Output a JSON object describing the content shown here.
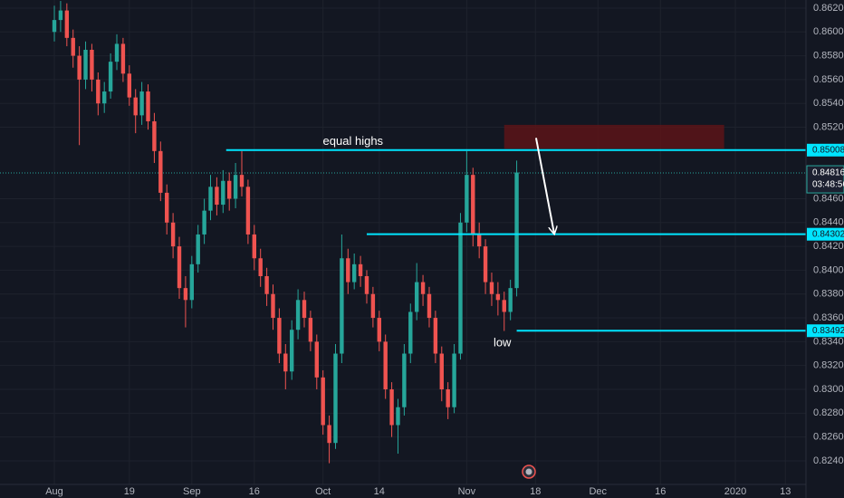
{
  "chart_data": {
    "type": "candlestick",
    "x": [
      0,
      1,
      2,
      3,
      4,
      5,
      6,
      7,
      8,
      9,
      10,
      11,
      12,
      13,
      14,
      15,
      16,
      17,
      18,
      19,
      20,
      21,
      22,
      23,
      24,
      25,
      26,
      27,
      28,
      29,
      30,
      31,
      32,
      33,
      34,
      35,
      36,
      37,
      38,
      39,
      40,
      41,
      42,
      43,
      44,
      45,
      46,
      47,
      48,
      49,
      50,
      51,
      52,
      53,
      54,
      55,
      56,
      57,
      58,
      59,
      60,
      61,
      62,
      63,
      64,
      65,
      66,
      67,
      68,
      69,
      70,
      71,
      72,
      73,
      74
    ],
    "open": [
      0.86,
      0.861,
      0.8618,
      0.8595,
      0.858,
      0.856,
      0.8585,
      0.856,
      0.854,
      0.855,
      0.8575,
      0.859,
      0.8565,
      0.8545,
      0.853,
      0.855,
      0.8525,
      0.85,
      0.8465,
      0.844,
      0.842,
      0.8385,
      0.8375,
      0.8405,
      0.843,
      0.845,
      0.847,
      0.8455,
      0.8475,
      0.846,
      0.848,
      0.847,
      0.843,
      0.841,
      0.8395,
      0.838,
      0.836,
      0.833,
      0.8315,
      0.835,
      0.8375,
      0.836,
      0.834,
      0.831,
      0.827,
      0.8255,
      0.833,
      0.841,
      0.839,
      0.8405,
      0.8395,
      0.838,
      0.836,
      0.834,
      0.83,
      0.827,
      0.8285,
      0.833,
      0.8365,
      0.839,
      0.838,
      0.836,
      0.833,
      0.83,
      0.8285,
      0.833,
      0.844,
      0.848,
      0.843,
      0.842,
      0.839,
      0.838,
      0.8375,
      0.8365,
      0.8385
    ],
    "high": [
      0.8622,
      0.8626,
      0.8624,
      0.8602,
      0.8588,
      0.8592,
      0.859,
      0.8566,
      0.8558,
      0.8582,
      0.8598,
      0.8595,
      0.8572,
      0.8552,
      0.8558,
      0.8556,
      0.8532,
      0.8508,
      0.8472,
      0.8448,
      0.8428,
      0.8395,
      0.8412,
      0.8438,
      0.846,
      0.848,
      0.8478,
      0.8484,
      0.8482,
      0.849,
      0.85,
      0.8476,
      0.8438,
      0.8418,
      0.8402,
      0.8388,
      0.8368,
      0.8338,
      0.8358,
      0.8384,
      0.8382,
      0.8366,
      0.8346,
      0.8316,
      0.8278,
      0.8338,
      0.843,
      0.8418,
      0.8414,
      0.8412,
      0.84,
      0.8386,
      0.8366,
      0.8346,
      0.8306,
      0.8292,
      0.8338,
      0.8372,
      0.8406,
      0.8396,
      0.8386,
      0.8366,
      0.8336,
      0.8306,
      0.8338,
      0.8448,
      0.85,
      0.8486,
      0.844,
      0.8426,
      0.8398,
      0.839,
      0.8382,
      0.8392,
      0.8492
    ],
    "low": [
      0.8592,
      0.86,
      0.8588,
      0.857,
      0.8505,
      0.8552,
      0.855,
      0.853,
      0.8532,
      0.8544,
      0.8568,
      0.8558,
      0.8538,
      0.8515,
      0.8522,
      0.8518,
      0.849,
      0.8458,
      0.843,
      0.841,
      0.8376,
      0.8352,
      0.8368,
      0.8398,
      0.8422,
      0.8442,
      0.8446,
      0.8448,
      0.845,
      0.8452,
      0.8462,
      0.8422,
      0.84,
      0.8386,
      0.837,
      0.835,
      0.8322,
      0.83,
      0.8308,
      0.8342,
      0.8352,
      0.8332,
      0.83,
      0.8262,
      0.8238,
      0.825,
      0.8322,
      0.838,
      0.8384,
      0.8386,
      0.8372,
      0.8352,
      0.8332,
      0.8292,
      0.826,
      0.8246,
      0.8278,
      0.8322,
      0.8358,
      0.837,
      0.8352,
      0.8322,
      0.829,
      0.8275,
      0.828,
      0.8325,
      0.8432,
      0.842,
      0.841,
      0.838,
      0.837,
      0.8362,
      0.8349,
      0.8358,
      0.8378
    ],
    "close": [
      0.861,
      0.8618,
      0.8595,
      0.858,
      0.856,
      0.8585,
      0.856,
      0.854,
      0.855,
      0.8575,
      0.859,
      0.8565,
      0.8545,
      0.853,
      0.855,
      0.8525,
      0.85,
      0.8465,
      0.844,
      0.842,
      0.8385,
      0.8375,
      0.8405,
      0.843,
      0.845,
      0.847,
      0.8455,
      0.8475,
      0.846,
      0.848,
      0.847,
      0.843,
      0.841,
      0.8395,
      0.838,
      0.836,
      0.833,
      0.8315,
      0.835,
      0.8375,
      0.836,
      0.834,
      0.831,
      0.827,
      0.8255,
      0.833,
      0.841,
      0.839,
      0.8405,
      0.8395,
      0.838,
      0.836,
      0.834,
      0.83,
      0.827,
      0.8285,
      0.833,
      0.8365,
      0.839,
      0.838,
      0.836,
      0.833,
      0.83,
      0.8285,
      0.833,
      0.844,
      0.848,
      0.843,
      0.842,
      0.839,
      0.838,
      0.8375,
      0.8365,
      0.8385,
      0.8482
    ],
    "up_color": "#26a69a",
    "down_color": "#ef5350",
    "xlim": [
      -8.7,
      120.3
    ],
    "ylim": [
      0.82202,
      0.86268
    ],
    "xticks": [
      {
        "value": 0,
        "label": "Aug"
      },
      {
        "value": 12,
        "label": "19"
      },
      {
        "value": 22,
        "label": "Sep"
      },
      {
        "value": 32,
        "label": "16"
      },
      {
        "value": 43,
        "label": "Oct"
      },
      {
        "value": 52,
        "label": "14"
      },
      {
        "value": 66,
        "label": "Nov"
      },
      {
        "value": 77,
        "label": "18"
      },
      {
        "value": 87,
        "label": "Dec"
      },
      {
        "value": 97,
        "label": "16"
      },
      {
        "value": 109,
        "label": "2020"
      },
      {
        "value": 117,
        "label": "13"
      }
    ],
    "yticks": [
      {
        "value": 0.862,
        "label": "0.86200"
      },
      {
        "value": 0.86,
        "label": "0.86000"
      },
      {
        "value": 0.858,
        "label": "0.85800"
      },
      {
        "value": 0.856,
        "label": "0.85600"
      },
      {
        "value": 0.854,
        "label": "0.85400"
      },
      {
        "value": 0.852,
        "label": "0.85200"
      },
      {
        "value": 0.846,
        "label": "0.84600"
      },
      {
        "value": 0.844,
        "label": "0.84400"
      },
      {
        "value": 0.842,
        "label": "0.84200"
      },
      {
        "value": 0.84,
        "label": "0.84000"
      },
      {
        "value": 0.838,
        "label": "0.83800"
      },
      {
        "value": 0.836,
        "label": "0.83600"
      },
      {
        "value": 0.834,
        "label": "0.83400"
      },
      {
        "value": 0.832,
        "label": "0.83200"
      },
      {
        "value": 0.83,
        "label": "0.83000"
      },
      {
        "value": 0.828,
        "label": "0.82800"
      },
      {
        "value": 0.826,
        "label": "0.82600"
      },
      {
        "value": 0.824,
        "label": "0.82400"
      }
    ],
    "grid": true,
    "levels": [
      {
        "value": 0.85008,
        "label": "0.85008",
        "from": 27.5
      },
      {
        "value": 0.84302,
        "label": "0.84302",
        "from": 50
      },
      {
        "value": 0.83492,
        "label": "0.83492",
        "from": 74
      }
    ],
    "level_color": "#00e5ff",
    "current": {
      "value": 0.84816,
      "label": "0.84816",
      "countdown": "03:48:56"
    },
    "zone": {
      "from": 72,
      "to": 107.2,
      "low": 0.8502,
      "high": 0.8522,
      "color": "#5c1418"
    },
    "arrow": {
      "x": [
        77.1,
        80
      ],
      "y": [
        0.8511,
        0.84308
      ]
    },
    "annotations": [
      {
        "text": "equal highs",
        "x": 47.8,
        "y": 0.8508
      },
      {
        "text": "low",
        "x": 71.7,
        "y": 0.83388
      }
    ]
  }
}
